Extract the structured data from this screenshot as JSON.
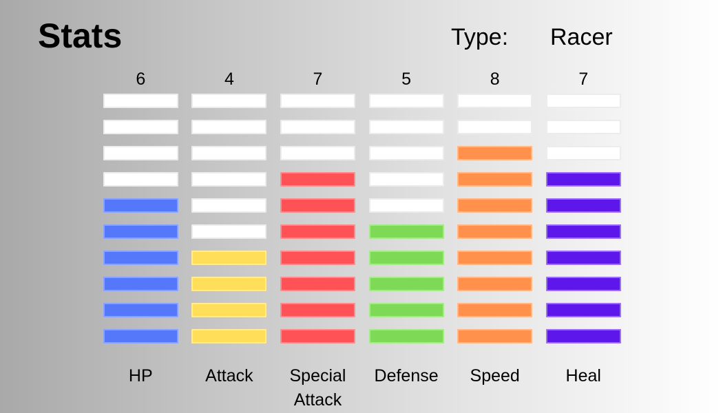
{
  "header": {
    "title": "Stats",
    "type_label": "Type:",
    "type_value": "Racer"
  },
  "stats_max": 10,
  "stats": [
    {
      "label": "HP",
      "value": "6",
      "filled": 6,
      "color": "#5577fa",
      "border": "#8aa2ff"
    },
    {
      "label": "Attack",
      "value": "4",
      "filled": 4,
      "color": "#ffde5a",
      "border": "#ffeb99"
    },
    {
      "label": "Special Attack",
      "value": "7",
      "filled": 7,
      "color": "#ff5257",
      "border": "#ff8b8f"
    },
    {
      "label": "Defense",
      "value": "5",
      "filled": 5,
      "color": "#7ed957",
      "border": "#a8e88c"
    },
    {
      "label": "Speed",
      "value": "8",
      "filled": 8,
      "color": "#ff914d",
      "border": "#ffb88a"
    },
    {
      "label": "Heal",
      "value": "7",
      "filled": 7,
      "color": "#5e17eb",
      "border": "#9a70f5"
    }
  ]
}
